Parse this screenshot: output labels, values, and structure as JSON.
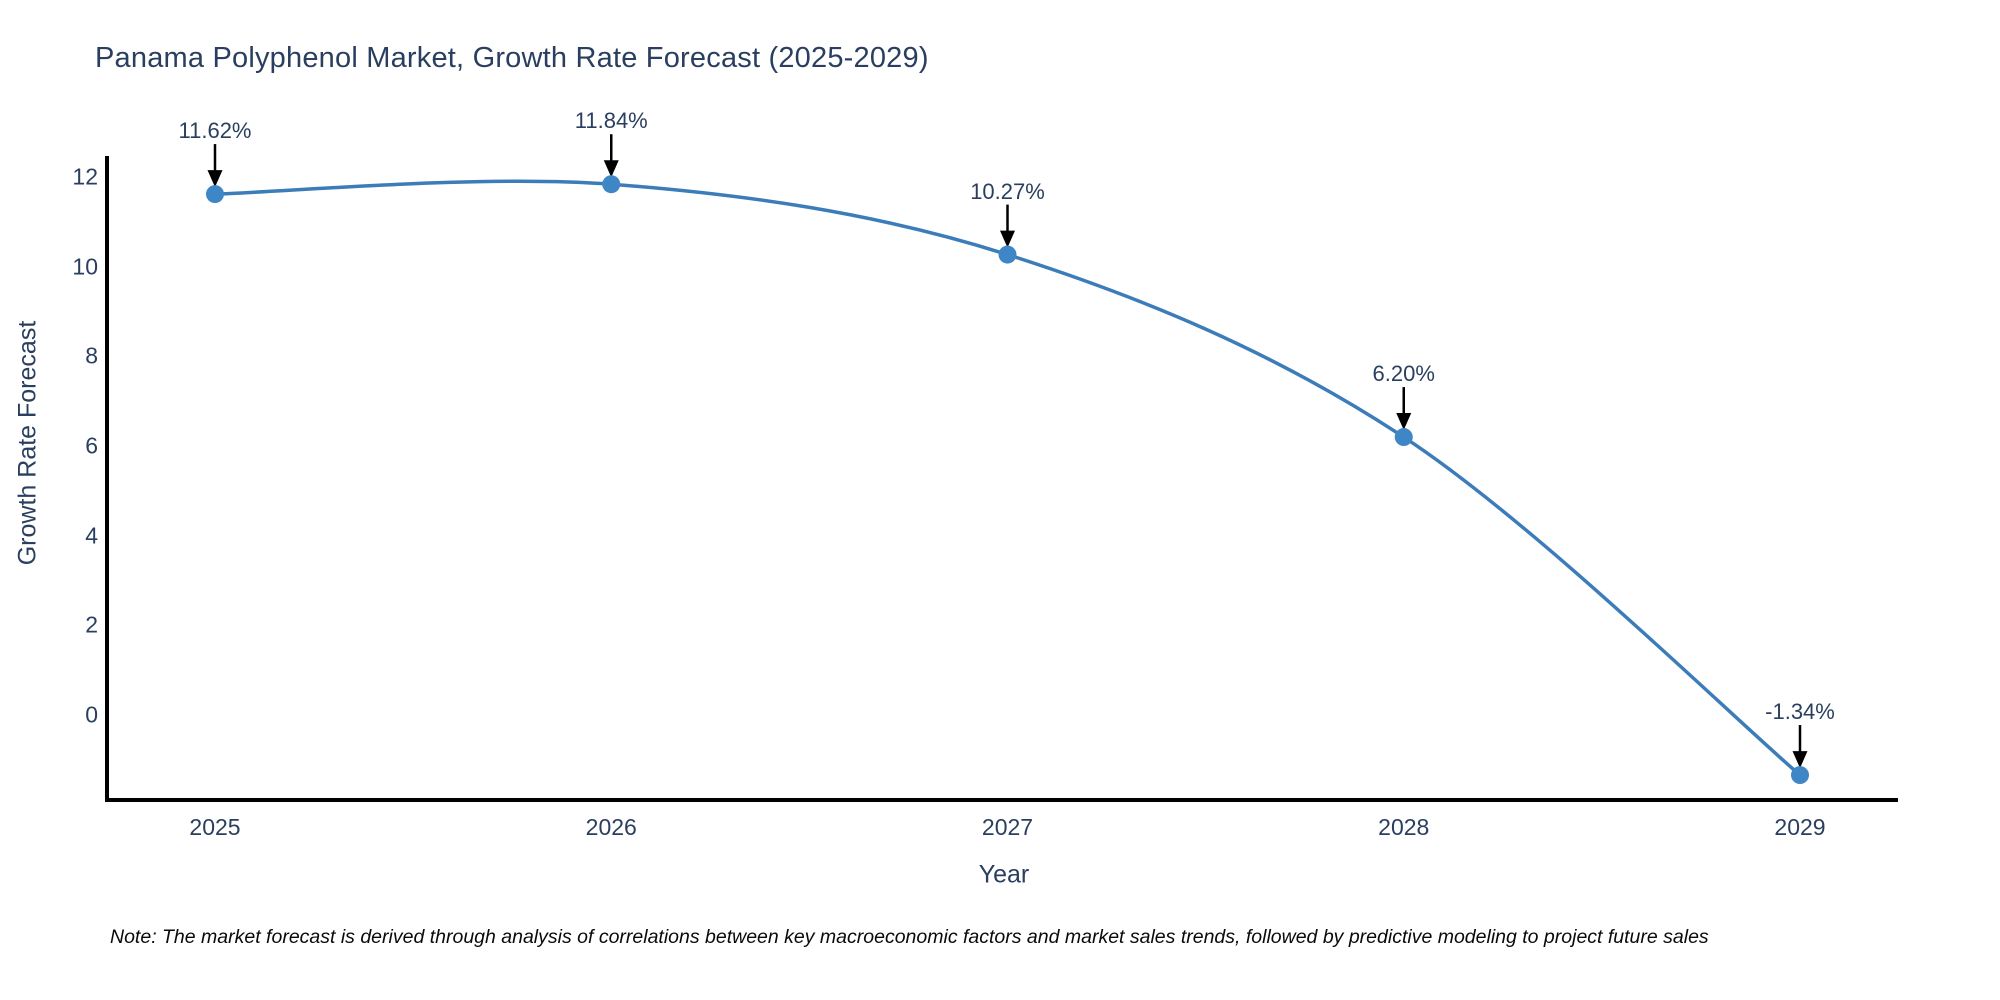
{
  "chart": {
    "title": "Panama Polyphenol Market, Growth Rate Forecast (2025-2029)",
    "note": "Note: The market forecast is derived through analysis of correlations between key macroeconomic factors and market sales trends, followed by predictive modeling to project future sales",
    "colors": {
      "line": "#3c7cb8",
      "marker": "#3f86c6",
      "text": "#2a3f5f",
      "axis": "#000000",
      "arrow": "#000000",
      "background": "#ffffff"
    }
  },
  "chart_data": {
    "type": "line",
    "line_shape": "spline",
    "categories": [
      "2025",
      "2026",
      "2027",
      "2028",
      "2029"
    ],
    "values": [
      11.62,
      11.84,
      10.27,
      6.2,
      -1.34
    ],
    "point_labels": [
      "11.62%",
      "11.84%",
      "10.27%",
      "6.20%",
      "-1.34%"
    ],
    "title": "Panama Polyphenol Market, Growth Rate Forecast (2025-2029)",
    "xlabel": "Year",
    "ylabel": "Growth Rate Forecast",
    "y_ticks": [
      12,
      10,
      8,
      6,
      4,
      2,
      0
    ],
    "ylim": [
      -1.9,
      12.45
    ],
    "grid": false,
    "legend": false,
    "annotations": "value labels with down arrows above each point"
  }
}
